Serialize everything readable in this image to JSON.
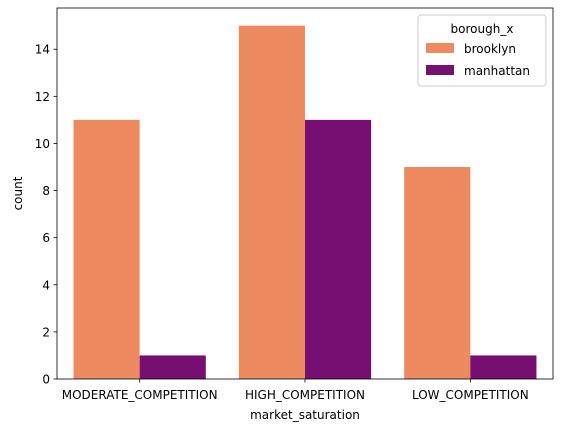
{
  "chart_data": {
    "type": "bar",
    "categories": [
      "MODERATE_COMPETITION",
      "HIGH_COMPETITION",
      "LOW_COMPETITION"
    ],
    "series": [
      {
        "name": "brooklyn",
        "values": [
          11,
          15,
          9
        ],
        "color": "#ed8a60"
      },
      {
        "name": "manhattan",
        "values": [
          1,
          11,
          1
        ],
        "color": "#760f71"
      }
    ],
    "xlabel": "market_saturation",
    "ylabel": "count",
    "ylim": [
      0,
      15.75
    ],
    "yticks": [
      0,
      2,
      4,
      6,
      8,
      10,
      12,
      14
    ],
    "legend": {
      "title": "borough_x",
      "placement": "top-right"
    },
    "grid": false
  }
}
